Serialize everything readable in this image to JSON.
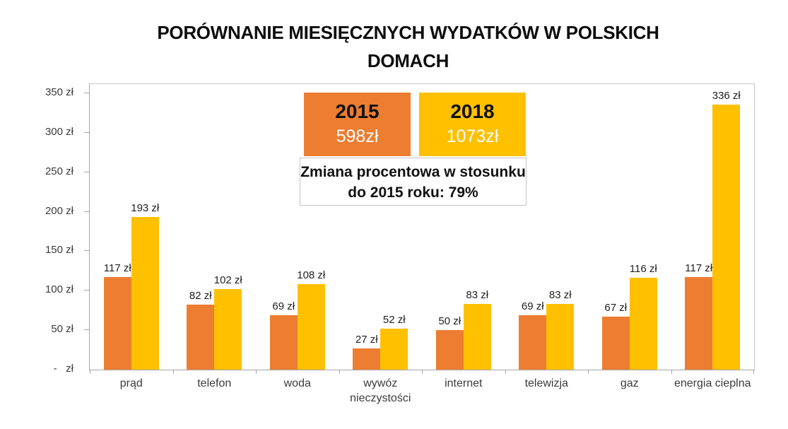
{
  "title": {
    "line1": "PORÓWNANIE MIESIĘCZNYCH WYDATKÓW W POLSKICH",
    "line2": "DOMACH"
  },
  "legend": {
    "items": [
      {
        "year": "2015",
        "total": "598zł",
        "color": "#ED7D31"
      },
      {
        "year": "2018",
        "total": "1073zł",
        "color": "#FFC000"
      }
    ]
  },
  "annotation": {
    "line1": "Zmiana procentowa w stosunku",
    "line2": "do 2015 roku: 79%"
  },
  "chart_data": {
    "type": "bar",
    "title": "PORÓWNANIE MIESIĘCZNYCH WYDATKÓW W POLSKICH DOMACH",
    "categories": [
      "prąd",
      "telefon",
      "woda",
      "wywóz nieczystości",
      "internet",
      "telewizja",
      "gaz",
      "energia cieplna"
    ],
    "series": [
      {
        "name": "2015",
        "color": "#ED7D31",
        "values": [
          117,
          82,
          69,
          27,
          50,
          69,
          67,
          117
        ],
        "total_label": "598zł"
      },
      {
        "name": "2018",
        "color": "#FFC000",
        "values": [
          193,
          102,
          108,
          52,
          83,
          83,
          116,
          336
        ],
        "total_label": "1073zł"
      }
    ],
    "value_suffix": " zł",
    "xlabel": "",
    "ylabel": "",
    "ylim": [
      0,
      361.6
    ],
    "yticks": [
      0,
      50,
      100,
      150,
      200,
      250,
      300,
      350
    ],
    "ytick_labels": [
      "-   zł",
      "50 zł",
      "100 zł",
      "150 zł",
      "200 zł",
      "250 zł",
      "300 zł",
      "350 zł"
    ],
    "grid": false,
    "legend_position": "inside-top-center",
    "annotation": "Zmiana procentowa w stosunku do 2015 roku: 79%"
  }
}
